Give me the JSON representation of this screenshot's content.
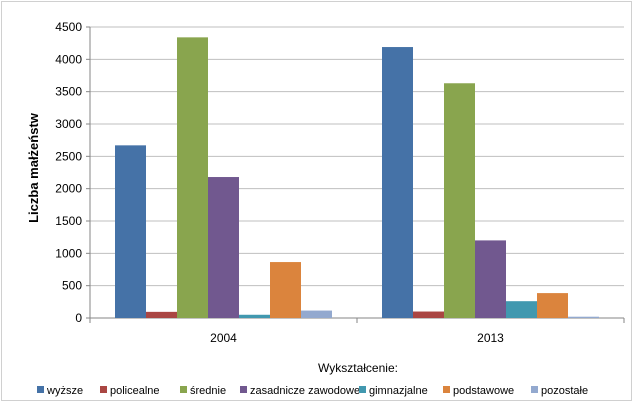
{
  "chart_data": {
    "type": "bar",
    "title": "",
    "xlabel": "Wykształcenie:",
    "ylabel": "Liczba małżeństw",
    "categories": [
      "2004",
      "2013"
    ],
    "ylim": [
      0,
      4500
    ],
    "yticks": [
      0,
      500,
      1000,
      1500,
      2000,
      2500,
      3000,
      3500,
      4000,
      4500
    ],
    "grid": true,
    "legend": "bottom",
    "series": [
      {
        "name": "wyższe",
        "color": "#4572A7",
        "values": [
          2670,
          4190
        ]
      },
      {
        "name": "policealne",
        "color": "#AA4643",
        "values": [
          95,
          100
        ]
      },
      {
        "name": "średnie",
        "color": "#89A54E",
        "values": [
          4340,
          3630
        ]
      },
      {
        "name": "zasadnicze zawodowe",
        "color": "#71588F",
        "values": [
          2180,
          1200
        ]
      },
      {
        "name": "gimnazjalne",
        "color": "#4198AF",
        "values": [
          50,
          260
        ]
      },
      {
        "name": "podstawowe",
        "color": "#DB843D",
        "values": [
          865,
          385
        ]
      },
      {
        "name": "pozostałe",
        "color": "#93A9CF",
        "values": [
          115,
          20
        ]
      }
    ]
  }
}
